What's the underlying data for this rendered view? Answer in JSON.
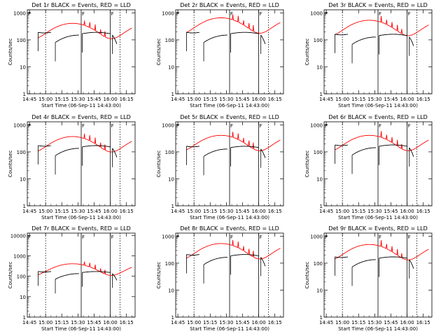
{
  "colors": {
    "events": "#000000",
    "lld": "#ff0000",
    "axis": "#000000",
    "background": "#ffffff"
  },
  "common": {
    "xlabel": "Start Time (06-Sep-11 14:43:00)",
    "ylabel": "Counts/sec",
    "x_tick_labels": [
      "14:45",
      "15:00",
      "15:15",
      "15:30",
      "15:45",
      "16:00",
      "16:15"
    ],
    "y_tick_labels_small": [
      "1",
      "10",
      "100",
      "1000"
    ],
    "y_tick_labels_large": [
      "1",
      "10",
      "100",
      "1000",
      "10000"
    ],
    "marker_label": "F"
  },
  "chart_data": [
    {
      "type": "line",
      "title": "Det 1r BLACK = Events, RED = LLD",
      "yscale": "log",
      "ylim": [
        1,
        1300
      ],
      "xlim": [
        "14:43",
        "16:23"
      ],
      "dotted_lines": [
        "15:00",
        "16:09"
      ],
      "solid_lines": [
        "15:33",
        "16:00"
      ],
      "events_scale": 1.0,
      "lld_scale": 1.0
    },
    {
      "type": "line",
      "title": "Det 2r BLACK = Events, RED = LLD",
      "yscale": "log",
      "ylim": [
        1,
        1300
      ],
      "xlim": [
        "14:43",
        "16:23"
      ],
      "dotted_lines": [
        "15:00",
        "16:09"
      ],
      "solid_lines": [
        "15:33",
        "16:00"
      ],
      "events_scale": 1.0,
      "lld_scale": 1.6
    },
    {
      "type": "line",
      "title": "Det 3r BLACK = Events, RED = LLD",
      "yscale": "log",
      "ylim": [
        1,
        1300
      ],
      "xlim": [
        "14:43",
        "16:23"
      ],
      "dotted_lines": [
        "15:00",
        "16:09"
      ],
      "solid_lines": [
        "15:33",
        "16:00"
      ],
      "events_scale": 0.85,
      "lld_scale": 1.3
    },
    {
      "type": "line",
      "title": "Det 4r BLACK = Events, RED = LLD",
      "yscale": "log",
      "ylim": [
        1,
        1300
      ],
      "xlim": [
        "14:43",
        "16:23"
      ],
      "dotted_lines": [
        "15:00",
        "16:09"
      ],
      "solid_lines": [
        "15:33",
        "16:00"
      ],
      "events_scale": 0.9,
      "lld_scale": 0.9
    },
    {
      "type": "line",
      "title": "Det 5r BLACK = Events, RED = LLD",
      "yscale": "log",
      "ylim": [
        1,
        1300
      ],
      "xlim": [
        "14:43",
        "16:23"
      ],
      "dotted_lines": [
        "15:00",
        "16:09"
      ],
      "solid_lines": [
        "15:33",
        "16:00"
      ],
      "events_scale": 0.85,
      "lld_scale": 1.0
    },
    {
      "type": "line",
      "title": "Det 6r BLACK = Events, RED = LLD",
      "yscale": "log",
      "ylim": [
        1,
        1300
      ],
      "xlim": [
        "14:43",
        "16:23"
      ],
      "dotted_lines": [
        "15:00",
        "16:09"
      ],
      "solid_lines": [
        "15:33",
        "16:00"
      ],
      "events_scale": 0.95,
      "lld_scale": 1.0
    },
    {
      "type": "line",
      "title": "Det 7r BLACK = Events, RED = LLD",
      "yscale": "log",
      "ylim": [
        1,
        13000
      ],
      "xlim": [
        "14:43",
        "16:23"
      ],
      "dotted_lines": [
        "15:00",
        "16:09"
      ],
      "solid_lines": [
        "15:33",
        "16:00"
      ],
      "events_scale": 0.9,
      "lld_scale": 1.0
    },
    {
      "type": "line",
      "title": "Det 8r BLACK = Events, RED = LLD",
      "yscale": "log",
      "ylim": [
        1,
        1300
      ],
      "xlim": [
        "14:43",
        "16:23"
      ],
      "dotted_lines": [
        "15:00",
        "16:09"
      ],
      "solid_lines": [
        "15:33",
        "16:00"
      ],
      "events_scale": 1.1,
      "lld_scale": 1.3
    },
    {
      "type": "line",
      "title": "Det 9r BLACK = Events, RED = LLD",
      "yscale": "log",
      "ylim": [
        1,
        1300
      ],
      "xlim": [
        "14:43",
        "16:23"
      ],
      "dotted_lines": [
        "15:00",
        "16:09"
      ],
      "solid_lines": [
        "15:33",
        "16:00"
      ],
      "events_scale": 0.9,
      "lld_scale": 1.2
    }
  ]
}
